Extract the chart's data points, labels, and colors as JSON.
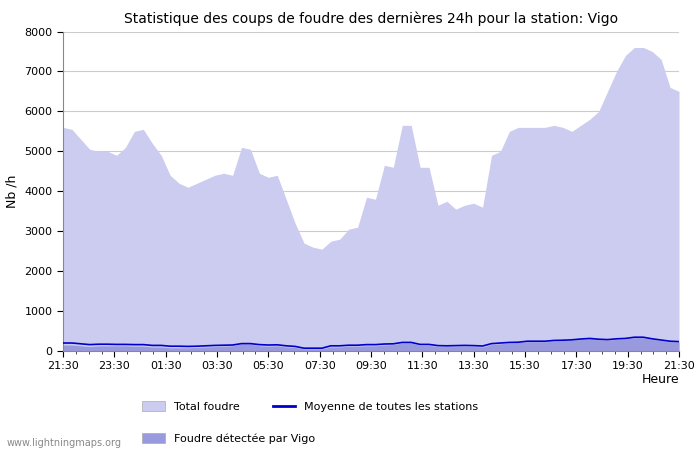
{
  "title": "Statistique des coups de foudre des dernières 24h pour la station: Vigo",
  "xlabel": "Heure",
  "ylabel": "Nb /h",
  "xlim": [
    0,
    48
  ],
  "ylim": [
    0,
    8000
  ],
  "yticks": [
    0,
    1000,
    2000,
    3000,
    4000,
    5000,
    6000,
    7000,
    8000
  ],
  "xtick_labels": [
    "21:30",
    "23:30",
    "01:30",
    "03:30",
    "05:30",
    "07:30",
    "09:30",
    "11:30",
    "13:30",
    "15:30",
    "17:30",
    "19:30",
    "21:30"
  ],
  "xtick_positions": [
    0,
    4,
    8,
    12,
    16,
    20,
    24,
    28,
    32,
    36,
    40,
    44,
    48
  ],
  "watermark": "www.lightningmaps.org",
  "legend_items": [
    "Total foudre",
    "Moyenne de toutes les stations",
    "Foudre détectée par Vigo"
  ],
  "total_foudre_color": "#ccccf0",
  "vigo_color": "#9999dd",
  "moyenne_color": "#0000cc",
  "background_color": "#ffffff",
  "plot_bg_color": "#ffffff",
  "grid_color": "#cccccc",
  "total_foudre_y": [
    5600,
    5300,
    5050,
    5050,
    5200,
    5550,
    5200,
    4900,
    4400,
    4100,
    4200,
    4400,
    4450,
    5100,
    4450,
    4350,
    3800,
    2700,
    2600,
    2750,
    3050,
    3850,
    4650,
    5650,
    4600,
    3650,
    3550,
    3700,
    4900,
    5500,
    5600,
    5650,
    5600,
    5500,
    5650,
    6000,
    7000,
    7600,
    7600,
    7500,
    6600
  ],
  "vigo_y": [
    150,
    130,
    110,
    130,
    130,
    120,
    100,
    80,
    80,
    100,
    120,
    170,
    130,
    130,
    100,
    50,
    50,
    100,
    120,
    150,
    200,
    140,
    110,
    110,
    160,
    200,
    230,
    250,
    290,
    310,
    280,
    270,
    290,
    330,
    290,
    230,
    220,
    150,
    150,
    130,
    110
  ],
  "moyenne_y": [
    200,
    180,
    160,
    170,
    165,
    160,
    140,
    120,
    115,
    130,
    145,
    185,
    160,
    155,
    130,
    70,
    70,
    130,
    145,
    175,
    215,
    165,
    135,
    135,
    185,
    215,
    245,
    265,
    300,
    315,
    295,
    285,
    305,
    345,
    305,
    245,
    235,
    200,
    180,
    165,
    150
  ],
  "n_points": 70,
  "total_foudre_y_full": [
    5600,
    5550,
    5300,
    5050,
    5000,
    5000,
    4900,
    5100,
    5500,
    5550,
    5200,
    4900,
    4400,
    4200,
    4100,
    4200,
    4300,
    4400,
    4450,
    4400,
    5100,
    5050,
    4450,
    4350,
    4400,
    3800,
    3200,
    2700,
    2600,
    2550,
    2750,
    2800,
    3050,
    3100,
    3850,
    3800,
    4650,
    4600,
    5650,
    5650,
    4600,
    4600,
    3650,
    3750,
    3550,
    3650,
    3700,
    3600,
    4900,
    5000,
    5500,
    5600,
    5600,
    5600,
    5600,
    5650,
    5600,
    5500,
    5650,
    5800,
    6000,
    6500,
    7000,
    7400,
    7600,
    7600,
    7500,
    7300,
    6600,
    6500
  ],
  "vigo_y_full": [
    150,
    150,
    130,
    110,
    130,
    130,
    130,
    130,
    120,
    120,
    100,
    100,
    80,
    80,
    80,
    90,
    100,
    110,
    120,
    130,
    170,
    170,
    130,
    120,
    130,
    100,
    90,
    50,
    50,
    50,
    100,
    100,
    120,
    120,
    130,
    130,
    150,
    160,
    200,
    200,
    140,
    140,
    110,
    110,
    110,
    120,
    110,
    100,
    160,
    180,
    200,
    210,
    230,
    230,
    230,
    250,
    260,
    270,
    290,
    310,
    280,
    270,
    290,
    300,
    330,
    330,
    290,
    260,
    230,
    220
  ],
  "moyenne_y_full": [
    200,
    200,
    180,
    160,
    170,
    170,
    165,
    165,
    160,
    160,
    140,
    140,
    120,
    120,
    115,
    120,
    130,
    140,
    145,
    150,
    185,
    185,
    160,
    150,
    155,
    130,
    115,
    70,
    70,
    70,
    130,
    130,
    145,
    145,
    160,
    160,
    175,
    180,
    215,
    215,
    165,
    165,
    135,
    130,
    135,
    140,
    135,
    125,
    185,
    200,
    215,
    220,
    245,
    245,
    245,
    265,
    270,
    280,
    300,
    315,
    295,
    285,
    305,
    315,
    345,
    345,
    305,
    275,
    245,
    235
  ]
}
